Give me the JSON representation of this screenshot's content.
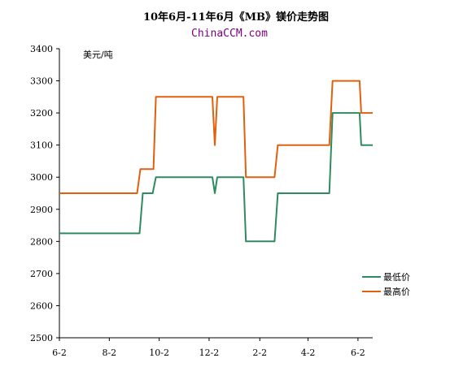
{
  "chart_data": {
    "type": "line",
    "title": "10年6月-11年6月《MB》镁价走势图",
    "subtitle": "ChinaCCM.com",
    "unit_label": "美元/吨",
    "ylim": [
      2500,
      3400
    ],
    "y_ticks": [
      2500,
      2600,
      2700,
      2800,
      2900,
      3000,
      3100,
      3200,
      3300,
      3400
    ],
    "x_ticks": [
      "6-2",
      "8-2",
      "10-2",
      "12-2",
      "2-2",
      "4-2",
      "6-2"
    ],
    "grid": false,
    "legend_position": "right",
    "series": [
      {
        "name": "最低价",
        "color": "#2e8b5f",
        "points": [
          [
            "2010-06-02",
            2825
          ],
          [
            "2010-09-08",
            2825
          ],
          [
            "2010-09-12",
            2950
          ],
          [
            "2010-09-24",
            2950
          ],
          [
            "2010-09-28",
            3000
          ],
          [
            "2010-12-06",
            3000
          ],
          [
            "2010-12-09",
            2950
          ],
          [
            "2010-12-12",
            3000
          ],
          [
            "2011-01-13",
            3000
          ],
          [
            "2011-01-16",
            2800
          ],
          [
            "2011-02-20",
            2800
          ],
          [
            "2011-02-24",
            2950
          ],
          [
            "2011-04-28",
            2950
          ],
          [
            "2011-05-02",
            3200
          ],
          [
            "2011-06-04",
            3200
          ],
          [
            "2011-06-06",
            3100
          ],
          [
            "2011-06-20",
            3100
          ]
        ]
      },
      {
        "name": "最高价",
        "color": "#e06010",
        "points": [
          [
            "2010-06-02",
            2950
          ],
          [
            "2010-09-05",
            2950
          ],
          [
            "2010-09-09",
            3025
          ],
          [
            "2010-09-25",
            3025
          ],
          [
            "2010-09-28",
            3250
          ],
          [
            "2010-12-06",
            3250
          ],
          [
            "2010-12-09",
            3100
          ],
          [
            "2010-12-12",
            3250
          ],
          [
            "2011-01-13",
            3250
          ],
          [
            "2011-01-16",
            3000
          ],
          [
            "2011-02-20",
            3000
          ],
          [
            "2011-02-24",
            3100
          ],
          [
            "2011-04-28",
            3100
          ],
          [
            "2011-05-02",
            3300
          ],
          [
            "2011-06-04",
            3300
          ],
          [
            "2011-06-06",
            3200
          ],
          [
            "2011-06-20",
            3200
          ]
        ]
      }
    ]
  }
}
